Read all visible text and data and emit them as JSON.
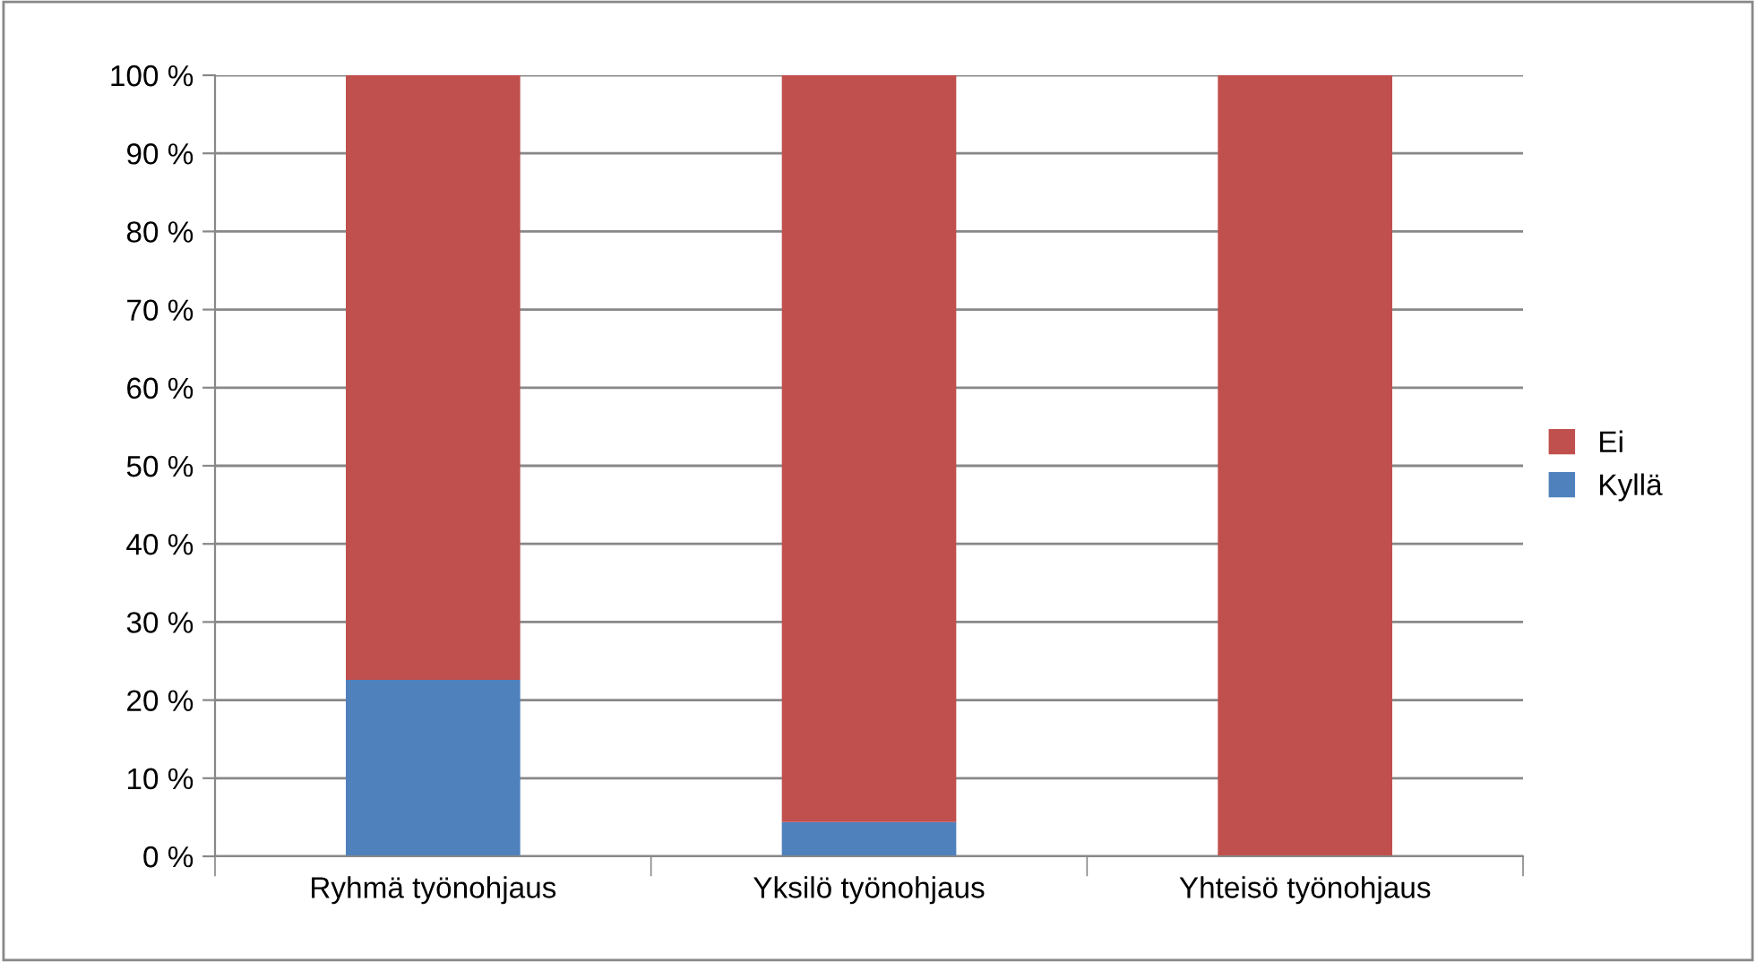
{
  "chart_data": {
    "type": "bar",
    "stacked": true,
    "categories": [
      "Ryhmä työnohjaus",
      "Yksilö työnohjaus",
      "Yhteisö työnohjaus"
    ],
    "series": [
      {
        "name": "Kyllä",
        "color": "#4f81bd",
        "values": [
          22.6,
          4.4,
          0
        ]
      },
      {
        "name": "Ei",
        "color": "#c0504d",
        "values": [
          77.4,
          95.6,
          100
        ]
      }
    ],
    "ylim": [
      0,
      100
    ],
    "yticks": [
      {
        "value": 0,
        "label": "0 %"
      },
      {
        "value": 10,
        "label": "10 %"
      },
      {
        "value": 20,
        "label": "20 %"
      },
      {
        "value": 30,
        "label": "30 %"
      },
      {
        "value": 40,
        "label": "40 %"
      },
      {
        "value": 50,
        "label": "50 %"
      },
      {
        "value": 60,
        "label": "60 %"
      },
      {
        "value": 70,
        "label": "70 %"
      },
      {
        "value": 80,
        "label": "80 %"
      },
      {
        "value": 90,
        "label": "90 %"
      },
      {
        "value": 100,
        "label": "100 %"
      }
    ],
    "grid": "y",
    "legend": "right"
  }
}
